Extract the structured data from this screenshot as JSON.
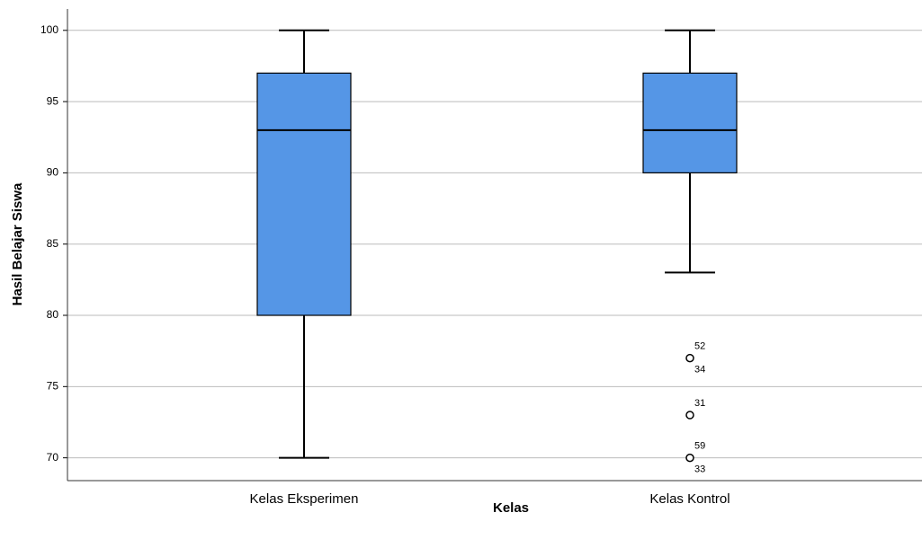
{
  "chart_data": {
    "type": "box",
    "x_label": "Kelas",
    "y_label": "Hasil Belajar Siswa",
    "categories": [
      "Kelas Eksperimen",
      "Kelas Kontrol"
    ],
    "color": "#5596e6",
    "ylim": [
      68.4,
      101.5
    ],
    "yticks": [
      70,
      75,
      80,
      85,
      90,
      95,
      100
    ],
    "grid": true,
    "boxes": [
      {
        "min": 70,
        "q1": 80,
        "median": 93,
        "q3": 97,
        "max": 100,
        "outliers": []
      },
      {
        "min": 83,
        "q1": 90,
        "median": 93,
        "q3": 97,
        "max": 100,
        "outliers": [
          {
            "value": 77,
            "labels": [
              "52",
              "34"
            ]
          },
          {
            "value": 73,
            "labels": [
              "31"
            ]
          },
          {
            "value": 70,
            "labels": [
              "59",
              "33"
            ]
          }
        ]
      }
    ]
  }
}
